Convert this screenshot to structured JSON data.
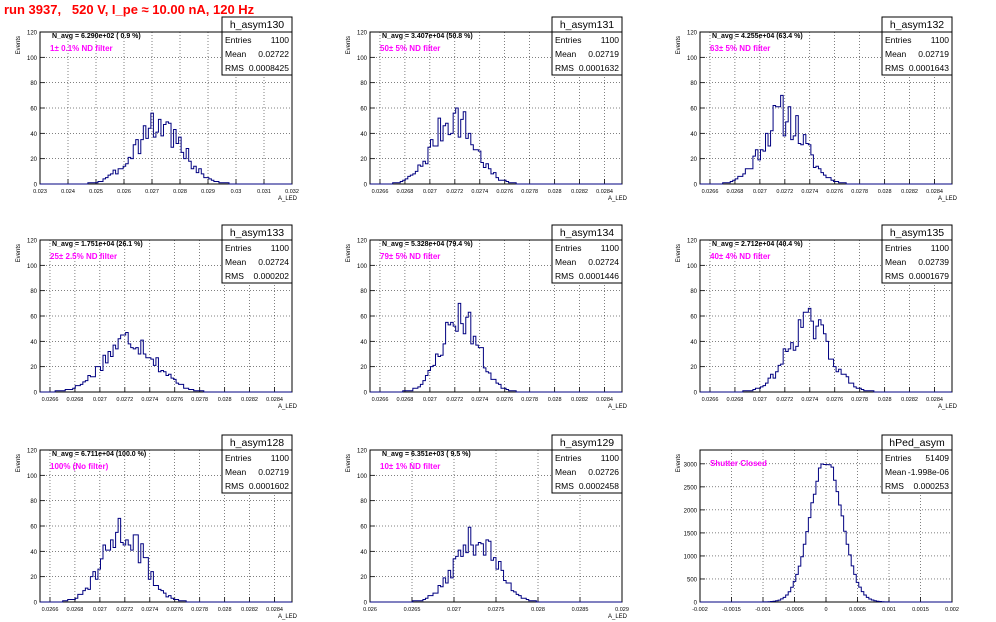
{
  "header": {
    "run_label": "run 3937,   520 V, I_pe ≈ 10.00 nA, 120 Hz"
  },
  "stats_labels": {
    "entries": "Entries",
    "mean": "Mean",
    "rms": "RMS"
  },
  "y_axis_label": "Events",
  "chart_data": [
    {
      "type": "bar",
      "title": "h_asym130",
      "navg": "N_avg = 6.290e+02 ( 0.9 %)",
      "filter": "1± 0.1% ND filter",
      "entries": "1100",
      "mean": "0.02722",
      "rms": "0.0008425",
      "xlabel": "A_LED",
      "x_ticks": [
        "0.023",
        "0.024",
        "0.025",
        "0.026",
        "0.027",
        "0.028",
        "0.029",
        "0.03",
        "0.031",
        "0.032"
      ],
      "y_ticks": [
        "0",
        "20",
        "40",
        "60",
        "80",
        "100",
        "120"
      ],
      "xlim": [
        0.023,
        0.032
      ],
      "ylim": [
        0,
        120
      ],
      "dist": {
        "center": 0.02722,
        "sigma": 0.00084,
        "peak": 47,
        "nbins": 100,
        "noise": 0.3,
        "seed": 3
      }
    },
    {
      "type": "bar",
      "title": "h_asym131",
      "navg": "N_avg = 3.407e+04 (50.8 %)",
      "filter": "50± 5% ND filter",
      "entries": "1100",
      "mean": "0.02719",
      "rms": "0.0001632",
      "xlabel": "A_LED",
      "x_ticks": [
        "0.0266",
        "0.0268",
        "0.027",
        "0.0272",
        "0.0274",
        "0.0276",
        "0.0278",
        "0.028",
        "0.0282",
        "0.0284"
      ],
      "y_ticks": [
        "0",
        "20",
        "40",
        "60",
        "80",
        "100",
        "120"
      ],
      "xlim": [
        0.02652,
        0.02854
      ],
      "ylim": [
        0,
        120
      ],
      "dist": {
        "center": 0.02719,
        "sigma": 0.000163,
        "peak": 52,
        "nbins": 100,
        "noise": 0.3,
        "seed": 7
      }
    },
    {
      "type": "bar",
      "title": "h_asym132",
      "navg": "N_avg = 4.255e+04 (63.4 %)",
      "filter": "63± 5% ND filter",
      "entries": "1100",
      "mean": "0.02719",
      "rms": "0.0001643",
      "xlabel": "A_LED",
      "x_ticks": [
        "0.0266",
        "0.0268",
        "0.027",
        "0.0272",
        "0.0274",
        "0.0276",
        "0.0278",
        "0.028",
        "0.0282",
        "0.0284"
      ],
      "y_ticks": [
        "0",
        "20",
        "40",
        "60",
        "80",
        "100",
        "120"
      ],
      "xlim": [
        0.02652,
        0.02854
      ],
      "ylim": [
        0,
        120
      ],
      "dist": {
        "center": 0.02719,
        "sigma": 0.000164,
        "peak": 54,
        "nbins": 100,
        "noise": 0.32,
        "seed": 11
      }
    },
    {
      "type": "bar",
      "title": "h_asym133",
      "navg": "N_avg = 1.751e+04 (26.1 %)",
      "filter": "25± 2.5% ND filter",
      "entries": "1100",
      "mean": "0.02724",
      "rms": "0.000202",
      "xlabel": "A_LED",
      "x_ticks": [
        "0.0266",
        "0.0268",
        "0.027",
        "0.0272",
        "0.0274",
        "0.0276",
        "0.0278",
        "0.028",
        "0.0282",
        "0.0284"
      ],
      "y_ticks": [
        "0",
        "20",
        "40",
        "60",
        "80",
        "100",
        "120"
      ],
      "xlim": [
        0.02652,
        0.02854
      ],
      "ylim": [
        0,
        120
      ],
      "dist": {
        "center": 0.02724,
        "sigma": 0.000202,
        "peak": 42,
        "nbins": 100,
        "noise": 0.25,
        "seed": 17
      }
    },
    {
      "type": "bar",
      "title": "h_asym134",
      "navg": "N_avg = 5.328e+04 (79.4 %)",
      "filter": "79± 5% ND filter",
      "entries": "1100",
      "mean": "0.02724",
      "rms": "0.0001446",
      "xlabel": "A_LED",
      "x_ticks": [
        "0.0266",
        "0.0268",
        "0.027",
        "0.0272",
        "0.0274",
        "0.0276",
        "0.0278",
        "0.028",
        "0.0282",
        "0.0284"
      ],
      "y_ticks": [
        "0",
        "20",
        "40",
        "60",
        "80",
        "100",
        "120"
      ],
      "xlim": [
        0.02652,
        0.02854
      ],
      "ylim": [
        0,
        120
      ],
      "dist": {
        "center": 0.02724,
        "sigma": 0.000145,
        "peak": 60,
        "nbins": 100,
        "noise": 0.25,
        "seed": 23
      }
    },
    {
      "type": "bar",
      "title": "h_asym135",
      "navg": "N_avg = 2.712e+04 (40.4 %)",
      "filter": "40± 4% ND filter",
      "entries": "1100",
      "mean": "0.02739",
      "rms": "0.0001679",
      "xlabel": "A_LED",
      "x_ticks": [
        "0.0266",
        "0.0268",
        "0.027",
        "0.0272",
        "0.0274",
        "0.0276",
        "0.0278",
        "0.028",
        "0.0282",
        "0.0284"
      ],
      "y_ticks": [
        "0",
        "20",
        "40",
        "60",
        "80",
        "100",
        "120"
      ],
      "xlim": [
        0.02652,
        0.02854
      ],
      "ylim": [
        0,
        120
      ],
      "dist": {
        "center": 0.02739,
        "sigma": 0.000168,
        "peak": 54,
        "nbins": 100,
        "noise": 0.25,
        "seed": 29
      }
    },
    {
      "type": "bar",
      "title": "h_asym128",
      "navg": "N_avg = 6.711e+04 (100.0 %)",
      "filter": "100% (No filter)",
      "entries": "1100",
      "mean": "0.02719",
      "rms": "0.0001602",
      "xlabel": "A_LED",
      "x_ticks": [
        "0.0266",
        "0.0268",
        "0.027",
        "0.0272",
        "0.0274",
        "0.0276",
        "0.0278",
        "0.028",
        "0.0282",
        "0.0284"
      ],
      "y_ticks": [
        "0",
        "20",
        "40",
        "60",
        "80",
        "100",
        "120"
      ],
      "xlim": [
        0.02652,
        0.02854
      ],
      "ylim": [
        0,
        120
      ],
      "dist": {
        "center": 0.02719,
        "sigma": 0.00016,
        "peak": 56,
        "nbins": 100,
        "noise": 0.3,
        "seed": 31
      }
    },
    {
      "type": "bar",
      "title": "h_asym129",
      "navg": "N_avg = 6.351e+03 ( 9.5 %)",
      "filter": "10± 1% ND filter",
      "entries": "1100",
      "mean": "0.02726",
      "rms": "0.0002458",
      "xlabel": "A_LED",
      "x_ticks": [
        "0.026",
        "0.0265",
        "0.027",
        "0.0275",
        "0.028",
        "0.0285",
        "0.029"
      ],
      "y_ticks": [
        "0",
        "20",
        "40",
        "60",
        "80",
        "100",
        "120"
      ],
      "xlim": [
        0.026,
        0.029
      ],
      "ylim": [
        0,
        120
      ],
      "dist": {
        "center": 0.02726,
        "sigma": 0.000246,
        "peak": 50,
        "nbins": 100,
        "noise": 0.25,
        "seed": 37
      }
    },
    {
      "type": "bar",
      "title": "hPed_asym",
      "navg": "",
      "filter": "Shutter Closed",
      "entries": "51409",
      "mean": "-1.998e-06",
      "rms": "0.000253",
      "xlabel": "",
      "x_ticks": [
        "-0.002",
        "-0.0015",
        "-0.001",
        "-0.0005",
        "0",
        "0.0005",
        "0.001",
        "0.0015",
        "0.002"
      ],
      "y_ticks": [
        "0",
        "500",
        "1000",
        "1500",
        "2000",
        "2500",
        "3000"
      ],
      "xlim": [
        -0.002,
        0.002
      ],
      "ylim": [
        0,
        3300
      ],
      "dist": {
        "center": 0,
        "sigma": 0.000253,
        "peak": 3080,
        "nbins": 100,
        "noise": 0.03,
        "seed": 41
      }
    }
  ],
  "colors": {
    "line": "#000080",
    "filter_text": "#ff00ff",
    "header": "#ff0000",
    "grid": "#000000"
  }
}
